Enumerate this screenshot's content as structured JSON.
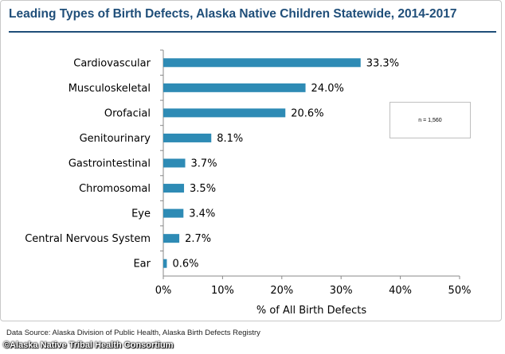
{
  "chart_data": {
    "type": "bar",
    "orientation": "horizontal",
    "title": "Leading Types of Birth Defects, Alaska Native Children Statewide, 2014-2017",
    "categories": [
      "Cardiovascular",
      "Musculoskeletal",
      "Orofacial",
      "Genitourinary",
      "Gastrointestinal",
      "Chromosomal",
      "Eye",
      "Central Nervous System",
      "Ear"
    ],
    "values": [
      33.3,
      24.0,
      20.6,
      8.1,
      3.7,
      3.5,
      3.4,
      2.7,
      0.6
    ],
    "value_labels": [
      "33.3%",
      "24.0%",
      "20.6%",
      "8.1%",
      "3.7%",
      "3.5%",
      "3.4%",
      "2.7%",
      "0.6%"
    ],
    "xlabel": "% of All Birth Defects",
    "ylabel": "",
    "xlim": [
      0,
      50
    ],
    "xticks": [
      0,
      10,
      20,
      30,
      40,
      50
    ],
    "xtick_labels": [
      "0%",
      "10%",
      "20%",
      "30%",
      "40%",
      "50%"
    ],
    "grid": false,
    "bar_color": "#2e8bb5",
    "annotation": "n = 1,560"
  },
  "footer": {
    "source": "Data Source: Alaska Division of Public Health, Alaska Birth Defects Registry",
    "credit": "©Alaska Native Tribal Health Consortium"
  },
  "colors": {
    "title": "#1f4e79",
    "bar": "#2e8bb5"
  }
}
